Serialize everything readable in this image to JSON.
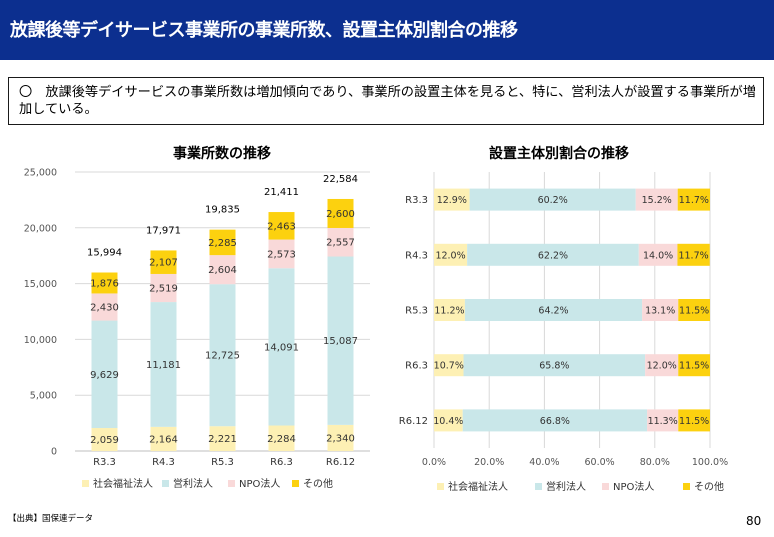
{
  "page": {
    "title": "放課後等デイサービス事業所の事業所数、設置主体別割合の推移",
    "summary": "〇　放課後等デイサービスの事業所数は増加傾向であり、事業所の設置主体を見ると、特に、営利法人が設置する事業所が増加している。",
    "source": "【出典】国保連データ",
    "page_number": "80"
  },
  "colors": {
    "title_bg": "#0c2f8f",
    "social_welfare": "#fdf0b4",
    "for_profit": "#c9e7e9",
    "npo": "#f9d9d9",
    "other": "#fcd10f"
  },
  "chart_data": [
    {
      "type": "bar",
      "stacked": true,
      "title": "事業所数の推移",
      "categories": [
        "R3.3",
        "R4.3",
        "R5.3",
        "R6.3",
        "R6.12"
      ],
      "series": [
        {
          "name": "社会福祉法人",
          "values": [
            2059,
            2164,
            2221,
            2284,
            2340
          ]
        },
        {
          "name": "営利法人",
          "values": [
            9629,
            11181,
            12725,
            14091,
            15087
          ]
        },
        {
          "name": "NPO法人",
          "values": [
            2430,
            2519,
            2604,
            2573,
            2557
          ]
        },
        {
          "name": "その他",
          "values": [
            1876,
            2107,
            2285,
            2463,
            2600
          ]
        }
      ],
      "totals": [
        15994,
        17971,
        19835,
        21411,
        22584
      ],
      "ylim": [
        0,
        25000
      ],
      "yticks": [
        0,
        5000,
        10000,
        15000,
        20000,
        25000
      ],
      "ytick_labels": [
        "0",
        "5,000",
        "10,000",
        "15,000",
        "20,000",
        "25,000"
      ],
      "grid": true,
      "legend": "bottom"
    },
    {
      "type": "bar",
      "orientation": "horizontal",
      "stacked_percent": true,
      "title": "設置主体別割合の推移",
      "categories": [
        "R3.3",
        "R4.3",
        "R5.3",
        "R6.3",
        "R6.12"
      ],
      "series": [
        {
          "name": "社会福祉法人",
          "values": [
            12.9,
            12.0,
            11.2,
            10.7,
            10.4
          ]
        },
        {
          "name": "営利法人",
          "values": [
            60.2,
            62.2,
            64.2,
            65.8,
            66.8
          ]
        },
        {
          "name": "NPO法人",
          "values": [
            15.2,
            14.0,
            13.1,
            12.0,
            11.3
          ]
        },
        {
          "name": "その他",
          "values": [
            11.7,
            11.7,
            11.5,
            11.5,
            11.5
          ]
        }
      ],
      "xlim": [
        0,
        100
      ],
      "xticks": [
        0,
        20,
        40,
        60,
        80,
        100
      ],
      "xtick_labels": [
        "0.0%",
        "20.0%",
        "40.0%",
        "60.0%",
        "80.0%",
        "100.0%"
      ],
      "grid": true,
      "legend": "bottom"
    }
  ]
}
